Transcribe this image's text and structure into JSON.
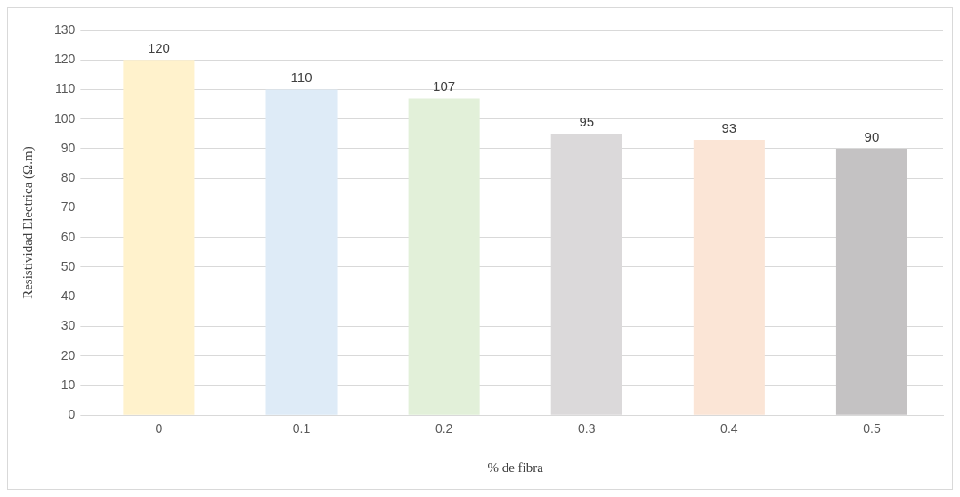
{
  "chart_data": {
    "type": "bar",
    "xlabel": "% de fibra",
    "ylabel": "Resistividad Electrica (Ω.m)",
    "categories": [
      "0",
      "0.1",
      "0.2",
      "0.3",
      "0.4",
      "0.5"
    ],
    "values": [
      120,
      110,
      107,
      95,
      93,
      90
    ],
    "colors": [
      "#fff2cc",
      "#deebf7",
      "#e2f0d9",
      "#dbd9da",
      "#fbe5d6",
      "#c4c2c3"
    ],
    "ylim": [
      0,
      130
    ],
    "yticks": [
      0,
      10,
      20,
      30,
      40,
      50,
      60,
      70,
      80,
      90,
      100,
      110,
      120,
      130
    ],
    "grid": "y",
    "data_labels": true
  }
}
